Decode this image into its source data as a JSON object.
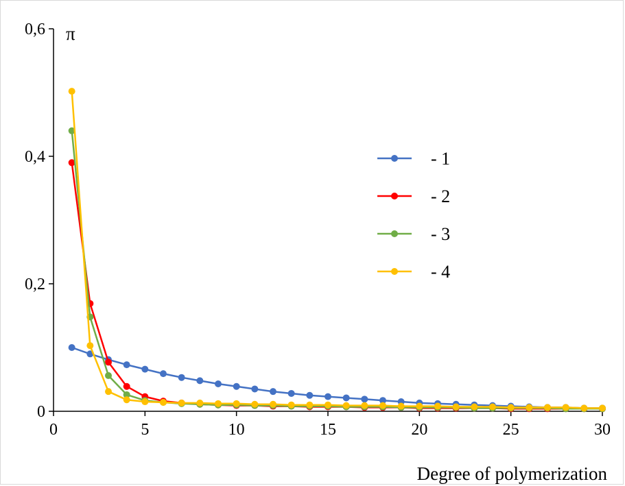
{
  "chart_data": {
    "type": "line",
    "xlabel": "Degree of  polymerization",
    "ylabel": "π",
    "xlim": [
      0,
      30
    ],
    "ylim": [
      0,
      0.6
    ],
    "x_ticks": [
      0,
      5,
      10,
      15,
      20,
      25,
      30
    ],
    "y_ticks": [
      0,
      0.2,
      0.4,
      0.6
    ],
    "x_tick_labels": [
      "0",
      "5",
      "10",
      "15",
      "20",
      "25",
      "30"
    ],
    "y_tick_labels": [
      "0",
      "0,2",
      "0,4",
      "0,6"
    ],
    "grid": false,
    "legend_position": "center-right",
    "series": [
      {
        "name": "- 1",
        "color": "#4472c4",
        "x": [
          1,
          2,
          3,
          4,
          5,
          6,
          7,
          8,
          9,
          10,
          11,
          12,
          13,
          14,
          15,
          16,
          17,
          18,
          19,
          20,
          21,
          22,
          23,
          24,
          25,
          26,
          27,
          28,
          29,
          30
        ],
        "y": [
          0.1,
          0.09,
          0.081,
          0.073,
          0.066,
          0.059,
          0.053,
          0.048,
          0.043,
          0.039,
          0.035,
          0.031,
          0.028,
          0.025,
          0.023,
          0.021,
          0.019,
          0.017,
          0.015,
          0.013,
          0.012,
          0.011,
          0.01,
          0.009,
          0.008,
          0.007,
          0.006,
          0.006,
          0.005,
          0.005
        ]
      },
      {
        "name": "- 2",
        "color": "#ff0000",
        "x": [
          1,
          2,
          3,
          4,
          5,
          6,
          7,
          8,
          9,
          10,
          11,
          12,
          13,
          14,
          15,
          16,
          17,
          18,
          19,
          20,
          21,
          22,
          23,
          24,
          25,
          26,
          27,
          28,
          29,
          30
        ],
        "y": [
          0.39,
          0.169,
          0.077,
          0.039,
          0.023,
          0.016,
          0.013,
          0.011,
          0.01,
          0.009,
          0.009,
          0.008,
          0.008,
          0.007,
          0.007,
          0.007,
          0.006,
          0.006,
          0.006,
          0.005,
          0.005,
          0.005,
          0.005,
          0.005,
          0.004,
          0.004,
          0.004,
          0.004,
          0.004,
          0.004
        ]
      },
      {
        "name": "- 3",
        "color": "#70ad47",
        "x": [
          1,
          2,
          3,
          4,
          5,
          6,
          7,
          8,
          9,
          10,
          11,
          12,
          13,
          14,
          15,
          16,
          17,
          18,
          19,
          20,
          21,
          22,
          23,
          24,
          25,
          26,
          27,
          28,
          29,
          30
        ],
        "y": [
          0.44,
          0.148,
          0.056,
          0.026,
          0.017,
          0.014,
          0.012,
          0.011,
          0.01,
          0.01,
          0.009,
          0.009,
          0.008,
          0.008,
          0.008,
          0.007,
          0.007,
          0.007,
          0.006,
          0.006,
          0.006,
          0.006,
          0.005,
          0.005,
          0.005,
          0.005,
          0.005,
          0.004,
          0.004,
          0.004
        ]
      },
      {
        "name": "- 4",
        "color": "#ffc000",
        "x": [
          1,
          2,
          3,
          4,
          5,
          6,
          7,
          8,
          9,
          10,
          11,
          12,
          13,
          14,
          15,
          16,
          17,
          18,
          19,
          20,
          21,
          22,
          23,
          24,
          25,
          26,
          27,
          28,
          29,
          30
        ],
        "y": [
          0.502,
          0.103,
          0.031,
          0.018,
          0.015,
          0.014,
          0.013,
          0.013,
          0.012,
          0.012,
          0.011,
          0.011,
          0.01,
          0.01,
          0.01,
          0.009,
          0.009,
          0.009,
          0.008,
          0.008,
          0.008,
          0.007,
          0.007,
          0.007,
          0.006,
          0.006,
          0.006,
          0.006,
          0.005,
          0.005
        ]
      }
    ]
  }
}
